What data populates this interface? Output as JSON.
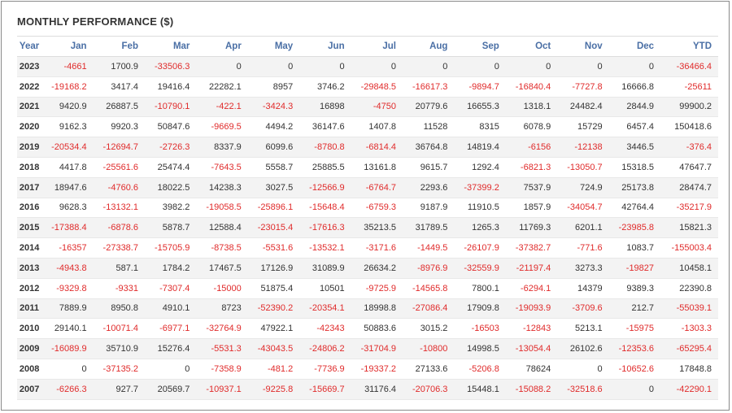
{
  "title": "MONTHLY PERFORMANCE ($)",
  "columns": [
    "Year",
    "Jan",
    "Feb",
    "Mar",
    "Apr",
    "May",
    "Jun",
    "Jul",
    "Aug",
    "Sep",
    "Oct",
    "Nov",
    "Dec",
    "YTD"
  ],
  "colors": {
    "header_text": "#4a6fa5",
    "negative": "#e02b2b",
    "positive": "#333333",
    "stripe": "#f3f3f3"
  },
  "rows": [
    [
      "2023",
      "-4661",
      "1700.9",
      "-33506.3",
      "0",
      "0",
      "0",
      "0",
      "0",
      "0",
      "0",
      "0",
      "0",
      "-36466.4"
    ],
    [
      "2022",
      "-19168.2",
      "3417.4",
      "19416.4",
      "22282.1",
      "8957",
      "3746.2",
      "-29848.5",
      "-16617.3",
      "-9894.7",
      "-16840.4",
      "-7727.8",
      "16666.8",
      "-25611"
    ],
    [
      "2021",
      "9420.9",
      "26887.5",
      "-10790.1",
      "-422.1",
      "-3424.3",
      "16898",
      "-4750",
      "20779.6",
      "16655.3",
      "1318.1",
      "24482.4",
      "2844.9",
      "99900.2"
    ],
    [
      "2020",
      "9162.3",
      "9920.3",
      "50847.6",
      "-9669.5",
      "4494.2",
      "36147.6",
      "1407.8",
      "11528",
      "8315",
      "6078.9",
      "15729",
      "6457.4",
      "150418.6"
    ],
    [
      "2019",
      "-20534.4",
      "-12694.7",
      "-2726.3",
      "8337.9",
      "6099.6",
      "-8780.8",
      "-6814.4",
      "36764.8",
      "14819.4",
      "-6156",
      "-12138",
      "3446.5",
      "-376.4"
    ],
    [
      "2018",
      "4417.8",
      "-25561.6",
      "25474.4",
      "-7643.5",
      "5558.7",
      "25885.5",
      "13161.8",
      "9615.7",
      "1292.4",
      "-6821.3",
      "-13050.7",
      "15318.5",
      "47647.7"
    ],
    [
      "2017",
      "18947.6",
      "-4760.6",
      "18022.5",
      "14238.3",
      "3027.5",
      "-12566.9",
      "-6764.7",
      "2293.6",
      "-37399.2",
      "7537.9",
      "724.9",
      "25173.8",
      "28474.7"
    ],
    [
      "2016",
      "9628.3",
      "-13132.1",
      "3982.2",
      "-19058.5",
      "-25896.1",
      "-15648.4",
      "-6759.3",
      "9187.9",
      "11910.5",
      "1857.9",
      "-34054.7",
      "42764.4",
      "-35217.9"
    ],
    [
      "2015",
      "-17388.4",
      "-6878.6",
      "5878.7",
      "12588.4",
      "-23015.4",
      "-17616.3",
      "35213.5",
      "31789.5",
      "1265.3",
      "11769.3",
      "6201.1",
      "-23985.8",
      "15821.3"
    ],
    [
      "2014",
      "-16357",
      "-27338.7",
      "-15705.9",
      "-8738.5",
      "-5531.6",
      "-13532.1",
      "-3171.6",
      "-1449.5",
      "-26107.9",
      "-37382.7",
      "-771.6",
      "1083.7",
      "-155003.4"
    ],
    [
      "2013",
      "-4943.8",
      "587.1",
      "1784.2",
      "17467.5",
      "17126.9",
      "31089.9",
      "26634.2",
      "-8976.9",
      "-32559.9",
      "-21197.4",
      "3273.3",
      "-19827",
      "10458.1"
    ],
    [
      "2012",
      "-9329.8",
      "-9331",
      "-7307.4",
      "-15000",
      "51875.4",
      "10501",
      "-9725.9",
      "-14565.8",
      "7800.1",
      "-6294.1",
      "14379",
      "9389.3",
      "22390.8"
    ],
    [
      "2011",
      "7889.9",
      "8950.8",
      "4910.1",
      "8723",
      "-52390.2",
      "-20354.1",
      "18998.8",
      "-27086.4",
      "17909.8",
      "-19093.9",
      "-3709.6",
      "212.7",
      "-55039.1"
    ],
    [
      "2010",
      "29140.1",
      "-10071.4",
      "-6977.1",
      "-32764.9",
      "47922.1",
      "-42343",
      "50883.6",
      "3015.2",
      "-16503",
      "-12843",
      "5213.1",
      "-15975",
      "-1303.3"
    ],
    [
      "2009",
      "-16089.9",
      "35710.9",
      "15276.4",
      "-5531.3",
      "-43043.5",
      "-24806.2",
      "-31704.9",
      "-10800",
      "14998.5",
      "-13054.4",
      "26102.6",
      "-12353.6",
      "-65295.4"
    ],
    [
      "2008",
      "0",
      "-37135.2",
      "0",
      "-7358.9",
      "-481.2",
      "-7736.9",
      "-19337.2",
      "27133.6",
      "-5206.8",
      "78624",
      "0",
      "-10652.6",
      "17848.8"
    ],
    [
      "2007",
      "-6266.3",
      "927.7",
      "20569.7",
      "-10937.1",
      "-9225.8",
      "-15669.7",
      "31176.4",
      "-20706.3",
      "15448.1",
      "-15088.2",
      "-32518.6",
      "0",
      "-42290.1"
    ]
  ]
}
